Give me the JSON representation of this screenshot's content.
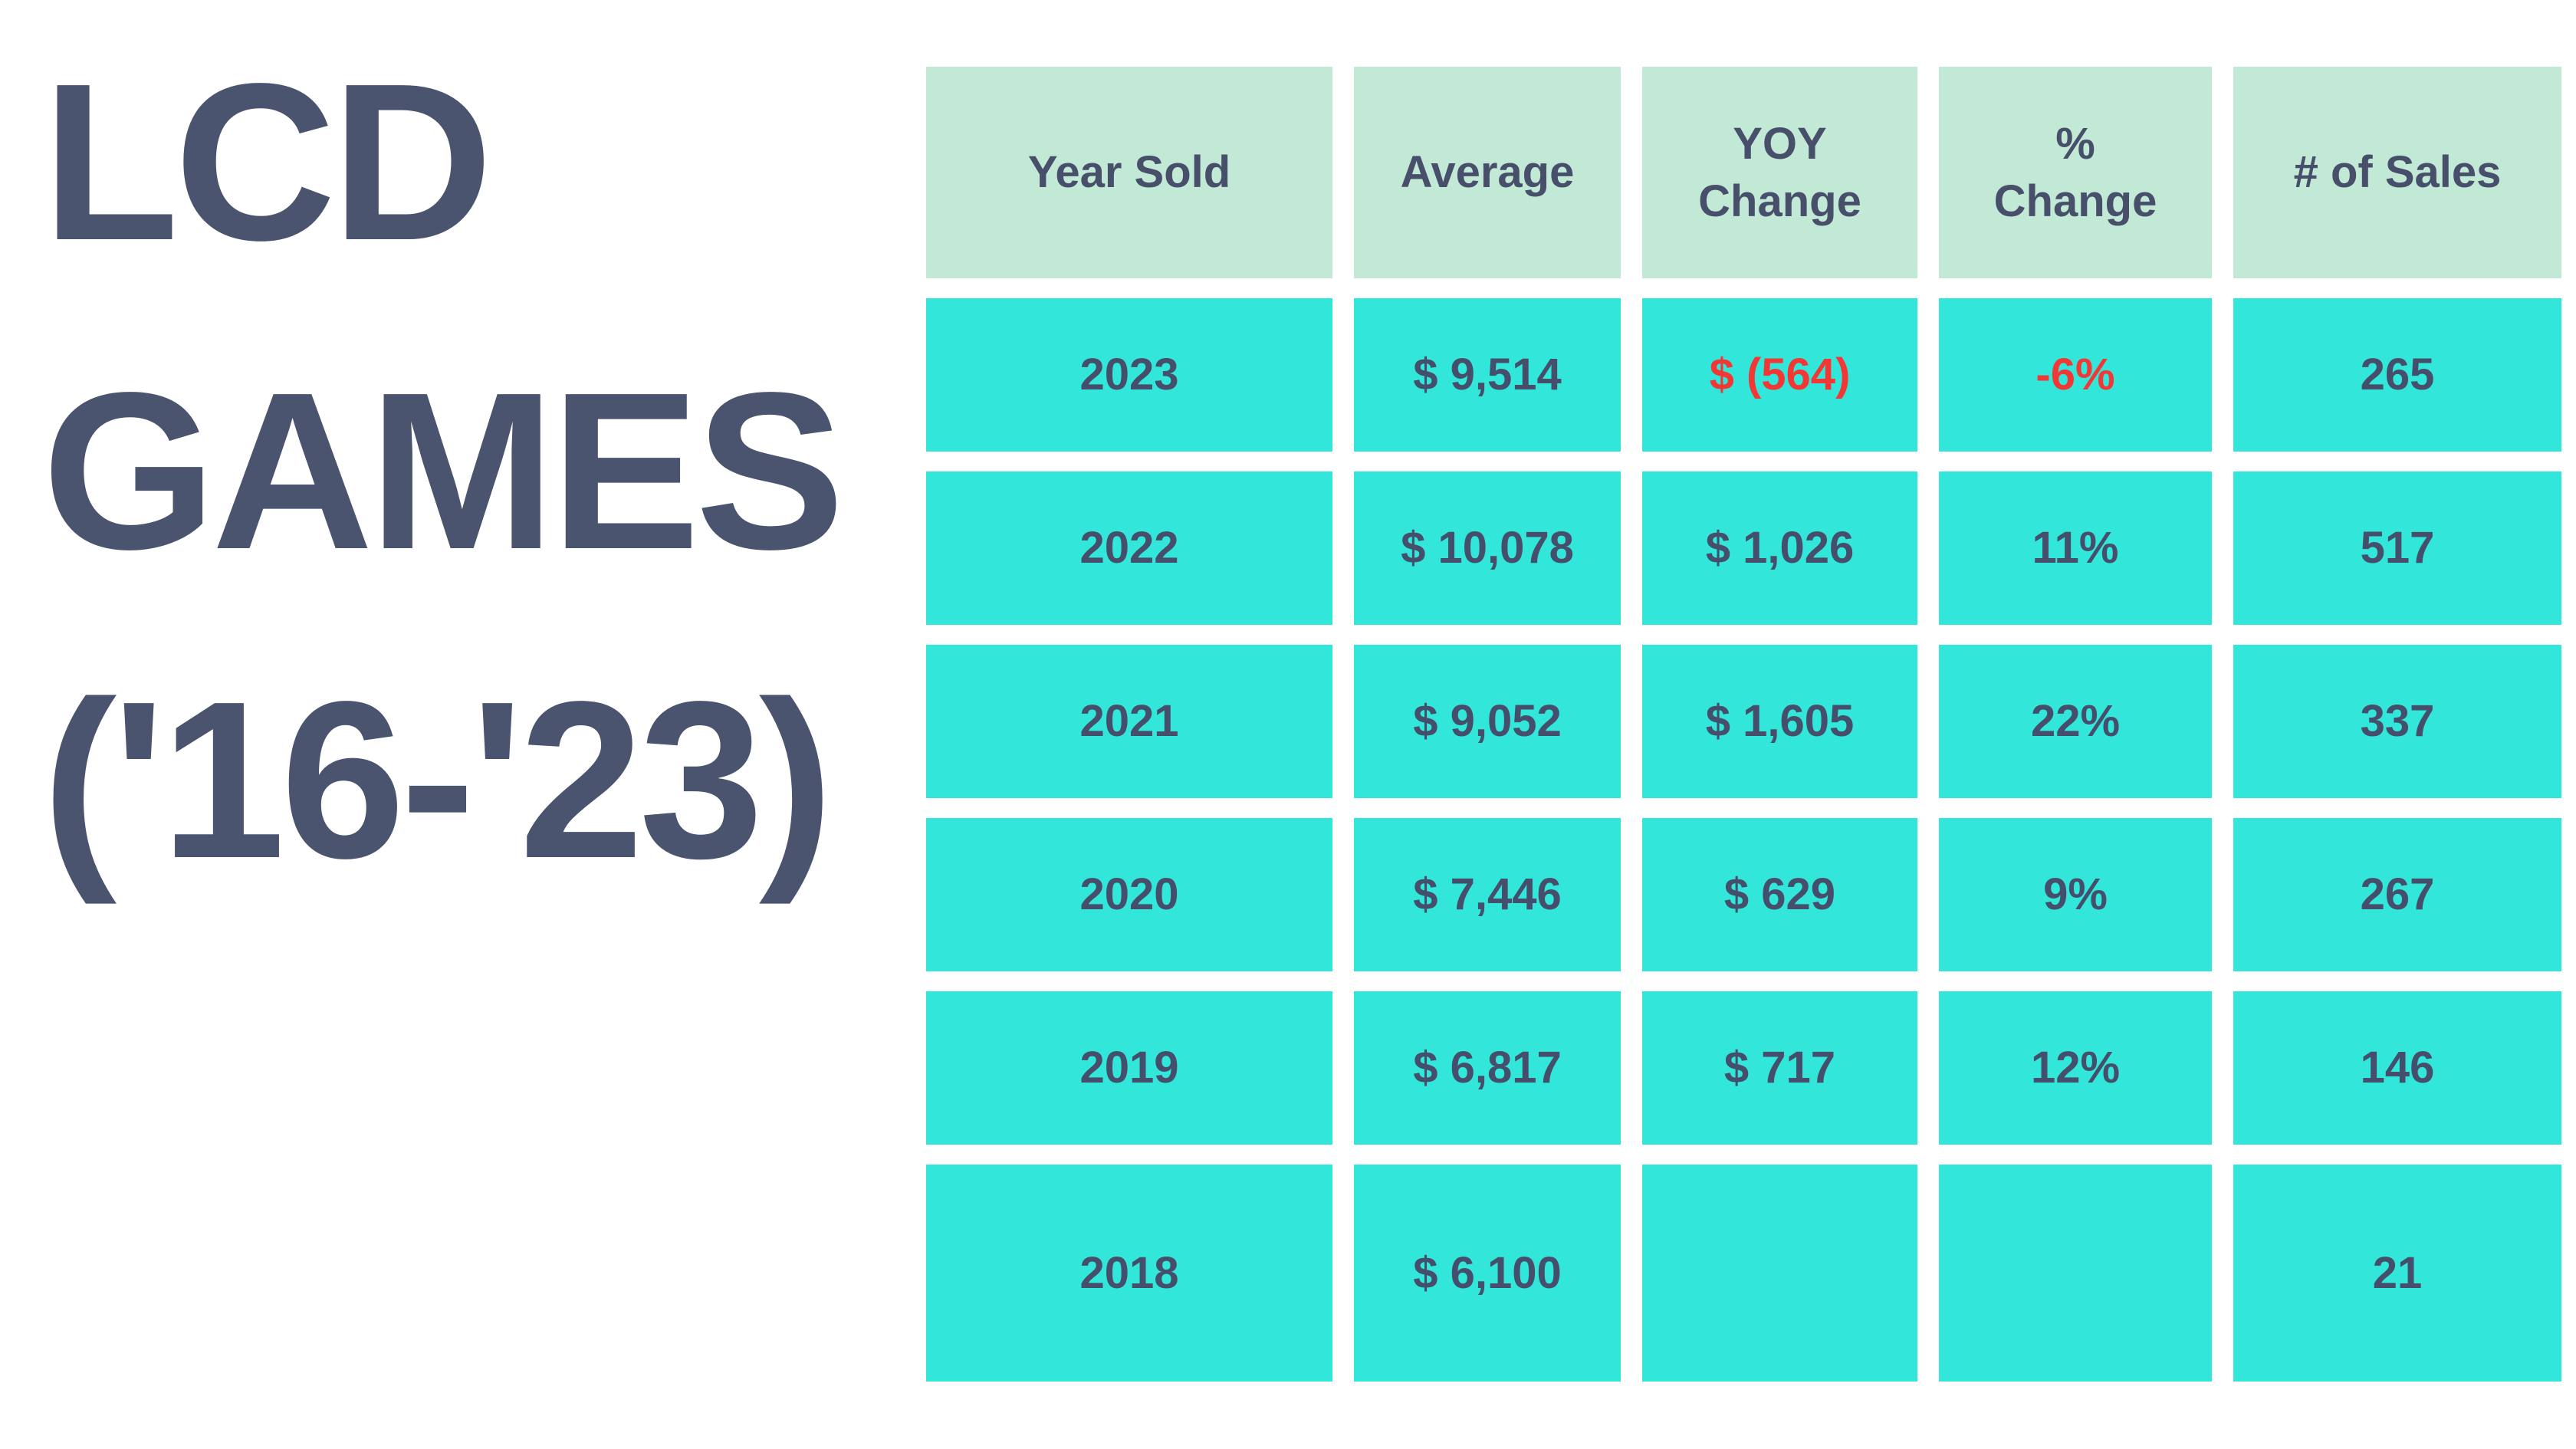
{
  "title": {
    "line1": "LCD",
    "line2": "GAMES",
    "line3": "('16-'23)"
  },
  "colors": {
    "page_bg": "#ffffff",
    "title_text": "#4a546e",
    "header_cell_bg": "#c2e9d6",
    "data_cell_bg": "#32e6da",
    "cell_text": "#454f6b",
    "negative_text": "#f23734"
  },
  "table": {
    "columns": [
      "Year Sold",
      "Average",
      "YOY\nChange",
      "%\nChange",
      "# of Sales"
    ],
    "rows": [
      {
        "year": "2023",
        "average": "$ 9,514",
        "yoy_change": "$ (564)",
        "pct_change": "-6%",
        "num_sales": "265",
        "negative": true
      },
      {
        "year": "2022",
        "average": "$ 10,078",
        "yoy_change": "$ 1,026",
        "pct_change": "11%",
        "num_sales": "517",
        "negative": false
      },
      {
        "year": "2021",
        "average": "$ 9,052",
        "yoy_change": "$ 1,605",
        "pct_change": "22%",
        "num_sales": "337",
        "negative": false
      },
      {
        "year": "2020",
        "average": "$ 7,446",
        "yoy_change": "$ 629",
        "pct_change": "9%",
        "num_sales": "267",
        "negative": false
      },
      {
        "year": "2019",
        "average": "$ 6,817",
        "yoy_change": "$ 717",
        "pct_change": "12%",
        "num_sales": "146",
        "negative": false
      },
      {
        "year": "2018",
        "average": "$ 6,100",
        "yoy_change": "",
        "pct_change": "",
        "num_sales": "21",
        "negative": false
      }
    ]
  },
  "chart_data": {
    "type": "table",
    "title": "LCD GAMES ('16-'23)",
    "categories": [
      2023,
      2022,
      2021,
      2020,
      2019,
      2018
    ],
    "series": [
      {
        "name": "Average ($)",
        "values": [
          9514,
          10078,
          9052,
          7446,
          6817,
          6100
        ]
      },
      {
        "name": "YOY Change ($)",
        "values": [
          -564,
          1026,
          1605,
          629,
          717,
          null
        ]
      },
      {
        "name": "% Change",
        "values": [
          -6,
          11,
          22,
          9,
          12,
          null
        ]
      },
      {
        "name": "# of Sales",
        "values": [
          265,
          517,
          337,
          267,
          146,
          21
        ]
      }
    ]
  }
}
